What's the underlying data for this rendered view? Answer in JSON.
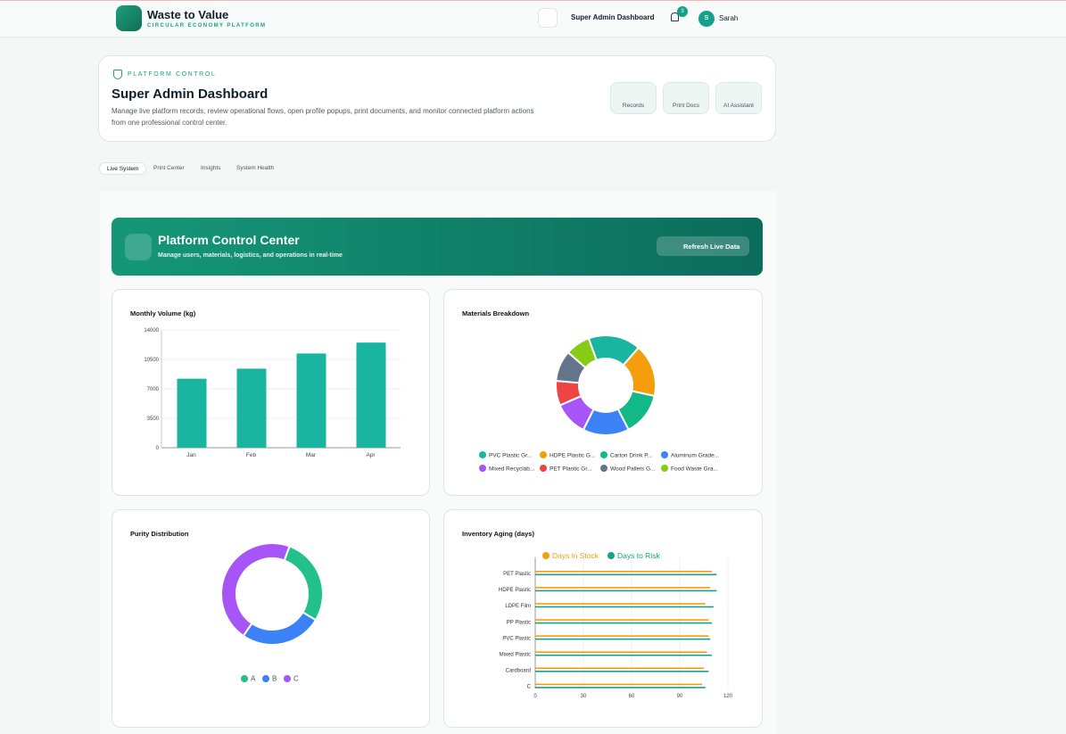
{
  "header": {
    "brand": "Waste to Value",
    "tagline": "CIRCULAR ECONOMY PLATFORM",
    "nav_title": "Super Admin Dashboard",
    "notifications": 3,
    "avatar": "S",
    "user": "Sarah"
  },
  "hero": {
    "eyebrow": "PLATFORM CONTROL",
    "title": "Super Admin Dashboard",
    "description": "Manage live platform records, review operational flows, open profile popups, print documents, and monitor connected platform actions from one professional control center.",
    "actions": [
      "Records",
      "Print Docs",
      "AI Assistant"
    ]
  },
  "tabs": [
    "Live System",
    "Print Center",
    "Insights",
    "System Health"
  ],
  "banner": {
    "title": "Platform Control Center",
    "subtitle": "Manage users, materials, logistics, and operations in real-time",
    "button": "Refresh Live Data"
  },
  "chart_data": [
    {
      "type": "bar",
      "title": "Monthly Volume (kg)",
      "categories": [
        "Jan",
        "Feb",
        "Mar",
        "Apr"
      ],
      "values": [
        8200,
        9400,
        11200,
        12500
      ],
      "color": "#1ab5a0",
      "ylim": [
        0,
        14000
      ],
      "yticks": [
        0,
        3500,
        7000,
        10500,
        14000
      ],
      "grid": true
    },
    {
      "type": "doughnut",
      "title": "Materials Breakdown",
      "categories": [
        "PVC Plastic Gr...",
        "HDPE Plastic G...",
        "Carton Drink P...",
        "Aluminum Grade...",
        "Mixed Recyclab...",
        "PET Plastic Gr...",
        "Wood Pallets G...",
        "Food Waste Gra..."
      ],
      "values": [
        17,
        17,
        14,
        15,
        11,
        8,
        10,
        8
      ],
      "colors": [
        "#1ab5a0",
        "#f59e0b",
        "#12b886",
        "#3b82f6",
        "#a855f7",
        "#ef4444",
        "#64748b",
        "#84cc16"
      ]
    },
    {
      "type": "doughnut",
      "title": "Purity Distribution",
      "categories": [
        "A",
        "B",
        "C"
      ],
      "values": [
        28,
        26,
        46
      ],
      "colors": [
        "#22c08a",
        "#3b82f6",
        "#a855f7"
      ]
    },
    {
      "type": "hbar",
      "title": "Inventory Aging (days)",
      "categories": [
        "PET Plastic",
        "HDPE Plastic",
        "LDPE Film",
        "PP Plastic",
        "PVC Plastic",
        "Mixed Plastic",
        "Cardboard",
        "C"
      ],
      "series": [
        {
          "name": "Days in Stock",
          "color": "#f59e0b",
          "values": [
            110,
            109,
            106,
            108,
            108,
            107,
            105,
            104
          ]
        },
        {
          "name": "Days to Risk",
          "color": "#14a38b",
          "values": [
            113,
            113,
            111,
            110,
            109,
            110,
            108,
            106
          ]
        }
      ],
      "xlim": [
        0,
        120
      ],
      "xticks": [
        0,
        30,
        60,
        90,
        120
      ],
      "grid": true
    }
  ]
}
